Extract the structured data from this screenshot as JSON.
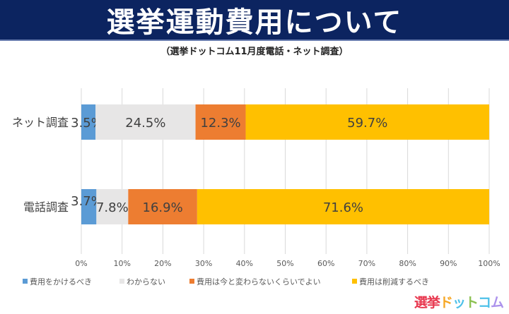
{
  "title": "選挙運動費用について",
  "subtitle": "（選挙ドットコム11月度電話・ネット調査）",
  "logo": "選挙ドットコム",
  "chart_data": {
    "type": "bar",
    "orientation": "horizontal-stacked-100",
    "categories": [
      "ネット調査",
      "電話調査"
    ],
    "series": [
      {
        "name": "費用をかけるべき",
        "color": "#5b9bd5",
        "values": [
          3.5,
          3.7
        ],
        "labels": [
          "3.5%",
          "3.7%"
        ]
      },
      {
        "name": "わからない",
        "color": "#e7e6e6",
        "values": [
          24.5,
          7.8
        ],
        "labels": [
          "24.5%",
          "7.8%"
        ]
      },
      {
        "name": "費用は今と変わらないくらいでよい",
        "color": "#ed7d31",
        "values": [
          12.3,
          16.9
        ],
        "labels": [
          "12.3%",
          "16.9%"
        ]
      },
      {
        "name": "費用は削減するべき",
        "color": "#ffc000",
        "values": [
          59.7,
          71.6
        ],
        "labels": [
          "59.7%",
          "71.6%"
        ]
      }
    ],
    "xlim": [
      0,
      100
    ],
    "xticks": [
      "0%",
      "10%",
      "20%",
      "30%",
      "40%",
      "50%",
      "60%",
      "70%",
      "80%",
      "90%",
      "100%"
    ],
    "grid": true,
    "legend": "bottom"
  }
}
